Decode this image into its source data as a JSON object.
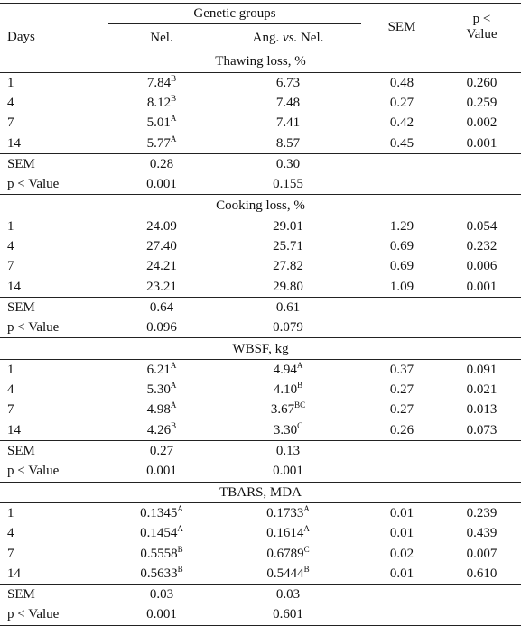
{
  "header": {
    "days": "Days",
    "group": "Genetic groups",
    "col_nel": "Nel.",
    "col_ang": {
      "pre": "Ang.",
      "em": "vs.",
      "post": "Nel."
    },
    "col_sem": "SEM",
    "col_p": [
      "p <",
      "Value"
    ]
  },
  "sections": [
    {
      "title": "Thawing loss, %",
      "rows": [
        [
          "1",
          {
            "value": "7.84",
            "sup": "B"
          },
          {
            "value": "6.73"
          },
          "0.48",
          "0.260"
        ],
        [
          "4",
          {
            "value": "8.12",
            "sup": "B"
          },
          {
            "value": "7.48"
          },
          "0.27",
          "0.259"
        ],
        [
          "7",
          {
            "value": "5.01",
            "sup": "A"
          },
          {
            "value": "7.41"
          },
          "0.42",
          "0.002"
        ],
        [
          "14",
          {
            "value": "5.77",
            "sup": "A"
          },
          {
            "value": "8.57"
          },
          "0.45",
          "0.001"
        ]
      ],
      "sem": [
        "SEM",
        "0.28",
        "0.30"
      ],
      "p": [
        "p < Value",
        "0.001",
        "0.155"
      ]
    },
    {
      "title": "Cooking loss, %",
      "rows": [
        [
          "1",
          {
            "value": "24.09"
          },
          {
            "value": "29.01"
          },
          "1.29",
          "0.054"
        ],
        [
          "4",
          {
            "value": "27.40"
          },
          {
            "value": "25.71"
          },
          "0.69",
          "0.232"
        ],
        [
          "7",
          {
            "value": "24.21"
          },
          {
            "value": "27.82"
          },
          "0.69",
          "0.006"
        ],
        [
          "14",
          {
            "value": "23.21"
          },
          {
            "value": "29.80"
          },
          "1.09",
          "0.001"
        ]
      ],
      "sem": [
        "SEM",
        "0.64",
        "0.61"
      ],
      "p": [
        "p < Value",
        "0.096",
        "0.079"
      ]
    },
    {
      "title": "WBSF, kg",
      "rows": [
        [
          "1",
          {
            "value": "6.21",
            "sup": "A"
          },
          {
            "value": "4.94",
            "sup": "A"
          },
          "0.37",
          "0.091"
        ],
        [
          "4",
          {
            "value": "5.30",
            "sup": "A"
          },
          {
            "value": "4.10",
            "sup": "B"
          },
          "0.27",
          "0.021"
        ],
        [
          "7",
          {
            "value": "4.98",
            "sup": "A"
          },
          {
            "value": "3.67",
            "sup": "BC"
          },
          "0.27",
          "0.013"
        ],
        [
          "14",
          {
            "value": "4.26",
            "sup": "B"
          },
          {
            "value": "3.30",
            "sup": "C"
          },
          "0.26",
          "0.073"
        ]
      ],
      "sem": [
        "SEM",
        "0.27",
        "0.13"
      ],
      "p": [
        "p < Value",
        "0.001",
        "0.001"
      ]
    },
    {
      "title": "TBARS, MDA",
      "rows": [
        [
          "1",
          {
            "value": "0.1345",
            "sup": "A"
          },
          {
            "value": "0.1733",
            "sup": "A"
          },
          "0.01",
          "0.239"
        ],
        [
          "4",
          {
            "value": "0.1454",
            "sup": "A"
          },
          {
            "value": "0.1614",
            "sup": "A"
          },
          "0.01",
          "0.439"
        ],
        [
          "7",
          {
            "value": "0.5558",
            "sup": "B"
          },
          {
            "value": "0.6789",
            "sup": "C"
          },
          "0.02",
          "0.007"
        ],
        [
          "14",
          {
            "value": "0.5633",
            "sup": "B"
          },
          {
            "value": "0.5444",
            "sup": "B"
          },
          "0.01",
          "0.610"
        ]
      ],
      "sem": [
        "SEM",
        "0.03",
        "0.03"
      ],
      "p": [
        "p < Value",
        "0.001",
        "0.601"
      ]
    }
  ]
}
